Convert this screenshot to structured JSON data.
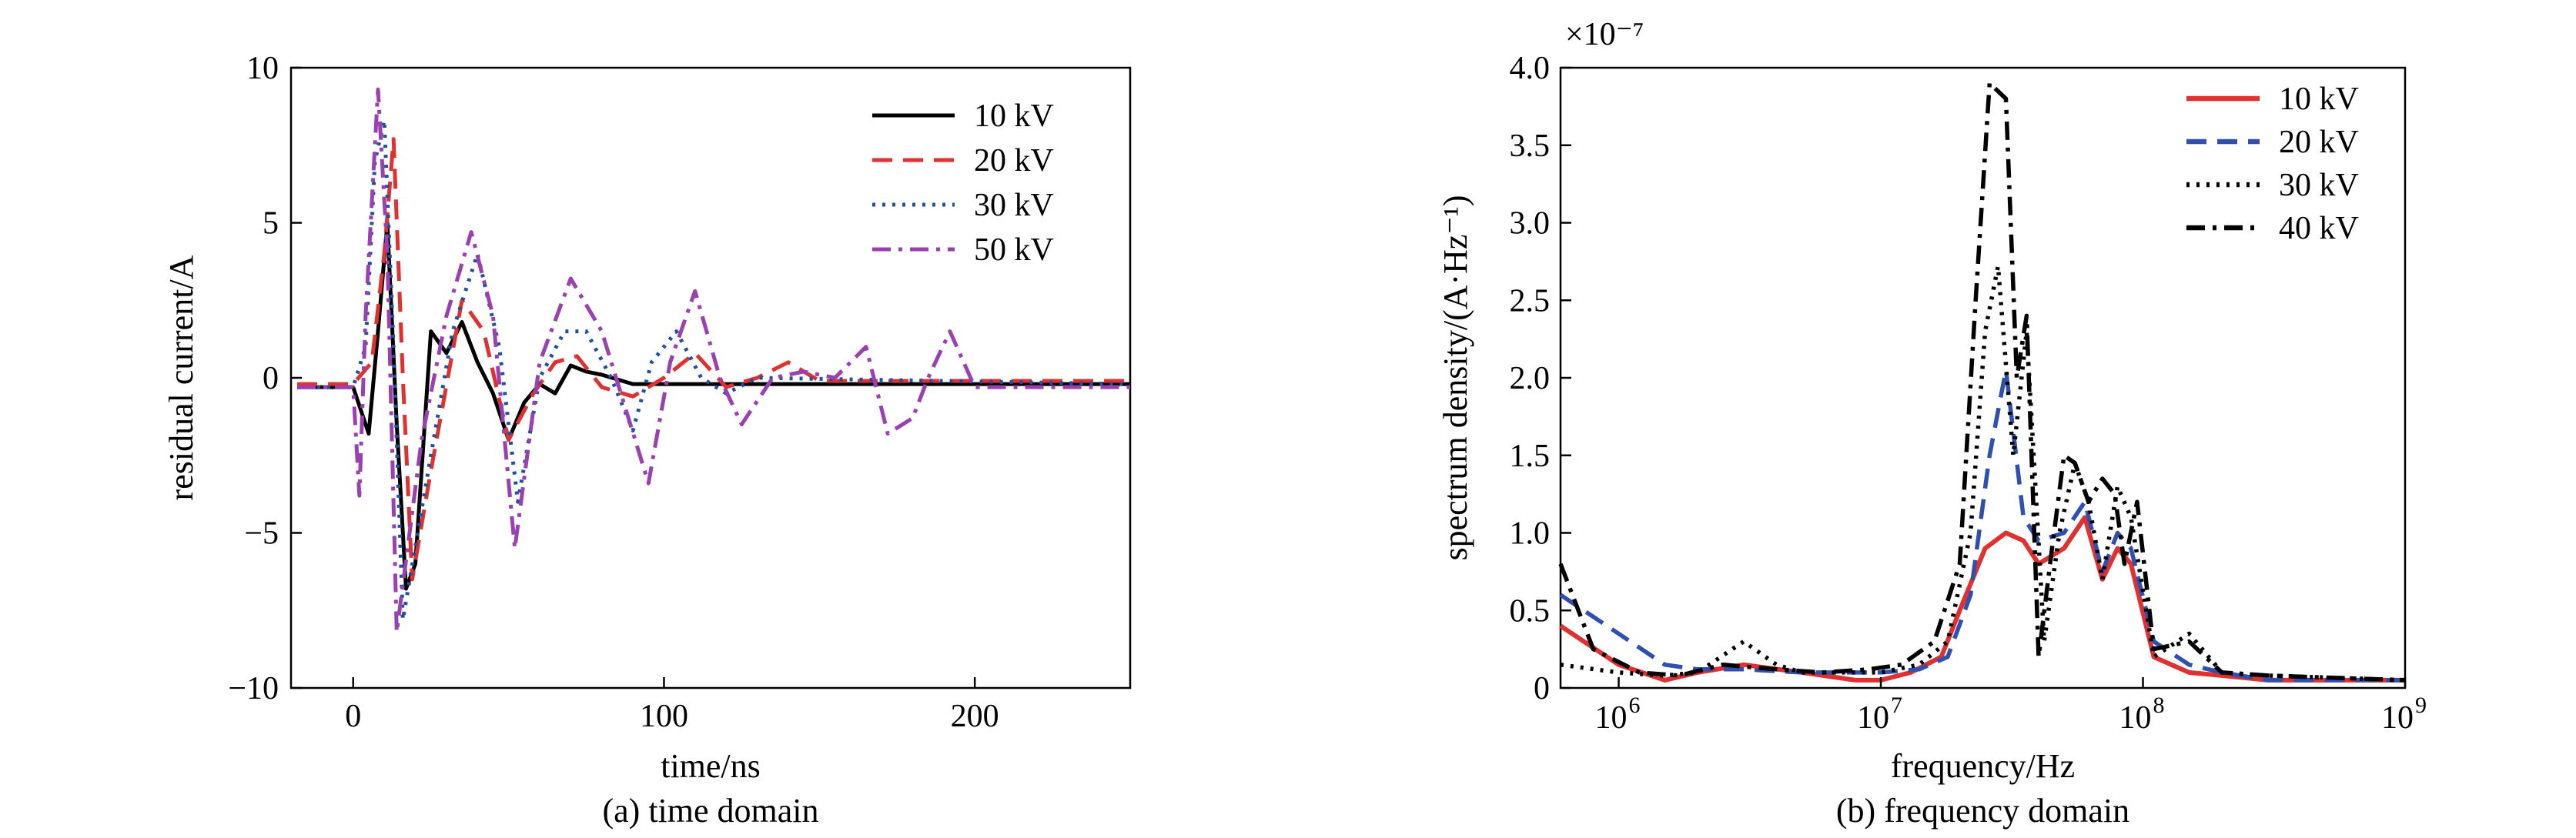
{
  "chart_data": [
    {
      "type": "line",
      "caption": "(a) time domain",
      "xlabel": "time/ns",
      "ylabel": "residual current/A",
      "xlim": [
        -20,
        250
      ],
      "ylim": [
        -10,
        10
      ],
      "xticks": [
        0,
        100,
        200
      ],
      "xtick_labels": [
        "0",
        "100",
        "200"
      ],
      "yticks": [
        10,
        5,
        0,
        -5,
        -10
      ],
      "ytick_labels": [
        "10",
        "5",
        "0",
        "−5",
        "−10"
      ],
      "grid": false,
      "legend_position": "top-right",
      "series": [
        {
          "name": "10 kV",
          "color": "#000000",
          "style": "solid",
          "x": [
            -18,
            0,
            5,
            8,
            11,
            14,
            17,
            20,
            25,
            30,
            35,
            40,
            45,
            50,
            55,
            60,
            65,
            70,
            75,
            80,
            90,
            110,
            250
          ],
          "y": [
            -0.3,
            -0.3,
            -1.8,
            1.5,
            5.0,
            -1.5,
            -6.8,
            -6.0,
            1.5,
            0.8,
            1.8,
            0.5,
            -0.5,
            -2.0,
            -0.8,
            -0.2,
            -0.5,
            0.4,
            0.2,
            0.1,
            -0.2,
            -0.2,
            -0.2
          ]
        },
        {
          "name": "20 kV",
          "color": "#e03030",
          "style": "dash",
          "x": [
            -18,
            0,
            6,
            10,
            13,
            16,
            19,
            25,
            35,
            42,
            50,
            58,
            65,
            72,
            80,
            90,
            100,
            110,
            120,
            130,
            140,
            150,
            250
          ],
          "y": [
            -0.2,
            -0.2,
            0.5,
            4.0,
            7.7,
            0.0,
            -6.5,
            -3.0,
            2.5,
            1.5,
            -2.0,
            -0.5,
            0.5,
            0.7,
            -0.3,
            -0.6,
            0.0,
            0.8,
            -0.3,
            0.0,
            0.5,
            -0.1,
            -0.1
          ]
        },
        {
          "name": "30 kV",
          "color": "#2050a0",
          "style": "dot",
          "x": [
            -18,
            0,
            4,
            7,
            10,
            13,
            16,
            25,
            32,
            40,
            47,
            53,
            60,
            68,
            75,
            83,
            90,
            96,
            104,
            112,
            120,
            130,
            250
          ],
          "y": [
            -0.3,
            -0.3,
            1.0,
            7.0,
            8.3,
            1.0,
            -7.8,
            -2.5,
            1.5,
            4.0,
            1.0,
            -4.0,
            0.0,
            1.5,
            1.5,
            0.0,
            -1.7,
            0.5,
            1.5,
            0.0,
            -0.5,
            0.0,
            -0.2
          ]
        },
        {
          "name": "50 kV",
          "color": "#9a40b0",
          "style": "dashdot",
          "x": [
            -18,
            0,
            2,
            4,
            8,
            11,
            14,
            22,
            30,
            38,
            45,
            52,
            60,
            70,
            80,
            95,
            102,
            110,
            118,
            125,
            135,
            145,
            155,
            165,
            172,
            180,
            185,
            192,
            200,
            250
          ],
          "y": [
            -0.3,
            -0.3,
            -3.8,
            2.0,
            9.3,
            4.0,
            -8.2,
            -2.0,
            2.0,
            4.7,
            2.0,
            -5.5,
            0.5,
            3.2,
            1.5,
            -3.4,
            0.5,
            2.8,
            0.0,
            -1.5,
            0.0,
            0.2,
            0.0,
            1.0,
            -1.8,
            -1.3,
            0.0,
            1.5,
            -0.3,
            -0.3
          ]
        }
      ]
    },
    {
      "type": "line",
      "caption": "(b) frequency domain",
      "xlabel": "frequency/Hz",
      "ylabel": "spectrum density/(A·Hz⁻¹)",
      "xscale": "log",
      "xlim": [
        600000,
        1000000000
      ],
      "ylim": [
        0,
        4.0
      ],
      "y_multiplier": "×10⁻⁷",
      "xtick_exponents": [
        6,
        7,
        8,
        9
      ],
      "yticks": [
        0,
        0.5,
        1.0,
        1.5,
        2.0,
        2.5,
        3.0,
        3.5,
        4.0
      ],
      "ytick_labels": [
        "0",
        "0.5",
        "1.0",
        "1.5",
        "2.0",
        "2.5",
        "3.0",
        "3.5",
        "4.0"
      ],
      "grid": false,
      "legend_position": "top-right",
      "series": [
        {
          "name": "10 kV",
          "color": "#e03030",
          "style": "solid",
          "x": [
            600000,
            1000000,
            1500000,
            2000000,
            3000000,
            5000000,
            8000000,
            10000000,
            13000000,
            17000000,
            20000000,
            25000000,
            30000000,
            35000000,
            40000000,
            50000000,
            60000000,
            70000000,
            80000000,
            90000000,
            110000000,
            150000000,
            200000000,
            300000000,
            1000000000
          ],
          "y": [
            0.4,
            0.15,
            0.05,
            0.1,
            0.15,
            0.1,
            0.05,
            0.05,
            0.1,
            0.2,
            0.5,
            0.9,
            1.0,
            0.95,
            0.8,
            0.9,
            1.1,
            0.7,
            0.9,
            0.8,
            0.2,
            0.1,
            0.08,
            0.05,
            0.05
          ]
        },
        {
          "name": "20 kV",
          "color": "#3050b0",
          "style": "dash",
          "x": [
            600000,
            1000000,
            1500000,
            2000000,
            3000000,
            5000000,
            8000000,
            10000000,
            14000000,
            18000000,
            22000000,
            26000000,
            30000000,
            35000000,
            40000000,
            50000000,
            60000000,
            70000000,
            80000000,
            90000000,
            110000000,
            150000000,
            200000000,
            300000000,
            1000000000
          ],
          "y": [
            0.6,
            0.35,
            0.15,
            0.12,
            0.12,
            0.1,
            0.1,
            0.1,
            0.12,
            0.2,
            0.6,
            1.5,
            2.05,
            1.1,
            0.95,
            1.0,
            1.2,
            0.75,
            1.0,
            0.9,
            0.3,
            0.15,
            0.1,
            0.05,
            0.05
          ]
        },
        {
          "name": "30 kV",
          "color": "#000000",
          "style": "dot",
          "x": [
            600000,
            1000000,
            1500000,
            2000000,
            3000000,
            4000000,
            5000000,
            8000000,
            10000000,
            14000000,
            18000000,
            22000000,
            25000000,
            28000000,
            32000000,
            36000000,
            42000000,
            48000000,
            55000000,
            62000000,
            70000000,
            80000000,
            90000000,
            110000000,
            150000000,
            200000000,
            300000000,
            1000000000
          ],
          "y": [
            0.15,
            0.1,
            0.08,
            0.1,
            0.3,
            0.15,
            0.1,
            0.1,
            0.1,
            0.15,
            0.3,
            1.0,
            2.3,
            2.72,
            1.5,
            2.3,
            0.3,
            1.0,
            1.45,
            1.2,
            0.7,
            1.3,
            1.1,
            0.2,
            0.35,
            0.1,
            0.08,
            0.05
          ]
        },
        {
          "name": "40 kV",
          "color": "#000000",
          "style": "dashdot",
          "x": [
            600000,
            800000,
            1200000,
            1700000,
            2500000,
            4000000,
            6000000,
            9000000,
            12000000,
            16000000,
            20000000,
            23000000,
            26000000,
            30000000,
            33000000,
            36000000,
            40000000,
            45000000,
            50000000,
            55000000,
            62000000,
            70000000,
            78000000,
            85000000,
            95000000,
            110000000,
            150000000,
            200000000,
            300000000,
            1000000000
          ],
          "y": [
            0.8,
            0.25,
            0.1,
            0.08,
            0.15,
            0.12,
            0.1,
            0.12,
            0.15,
            0.3,
            0.8,
            2.5,
            3.9,
            3.8,
            2.0,
            2.4,
            0.2,
            0.9,
            1.5,
            1.45,
            1.2,
            1.35,
            1.25,
            0.8,
            1.2,
            0.25,
            0.3,
            0.1,
            0.08,
            0.05
          ]
        }
      ]
    }
  ]
}
